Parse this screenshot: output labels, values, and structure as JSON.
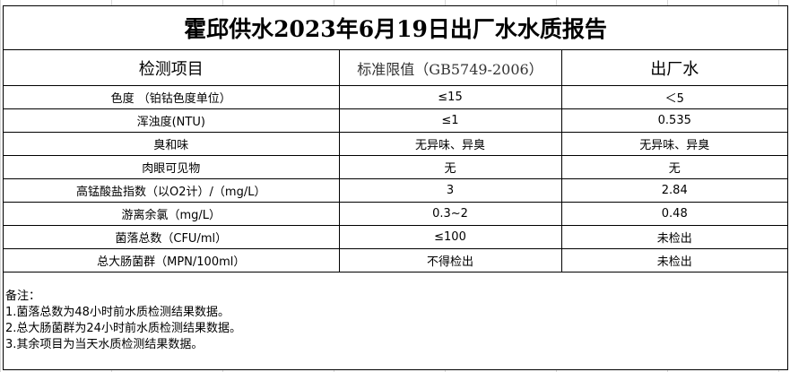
{
  "title": "霍邱供水2023年6月19日出厂水水质报告",
  "columns": [
    "检测项目",
    "标准限值（GB5749-2006）",
    "出厂水"
  ],
  "rows": [
    [
      "色度 （铂钴色度单位）",
      "≤15",
      "＜5"
    ],
    [
      "浑浊度(NTU)",
      "≤1",
      "0.535"
    ],
    [
      "臭和味",
      "无异味、异臭",
      "无异味、异臭"
    ],
    [
      "肉眼可见物",
      "无",
      "无"
    ],
    [
      "高锰酸盐指数（以O2计）/（mg/L）",
      "3",
      "2.84"
    ],
    [
      "游离余氯（mg/L）",
      "0.3~2",
      "0.48"
    ],
    [
      "菌落总数（CFU/ml）",
      "≤100",
      "未检出"
    ],
    [
      "总大肠菌群（MPN/100ml）",
      "不得检出",
      "未检出"
    ]
  ],
  "notes": {
    "heading": "备注：",
    "items": [
      "1.菌落总数为48小时前水质检测结果数据。",
      "2.总大肠菌群为24小时前水质检测结果数据。",
      "3.其余项目为当天水质检测结果数据。"
    ]
  }
}
